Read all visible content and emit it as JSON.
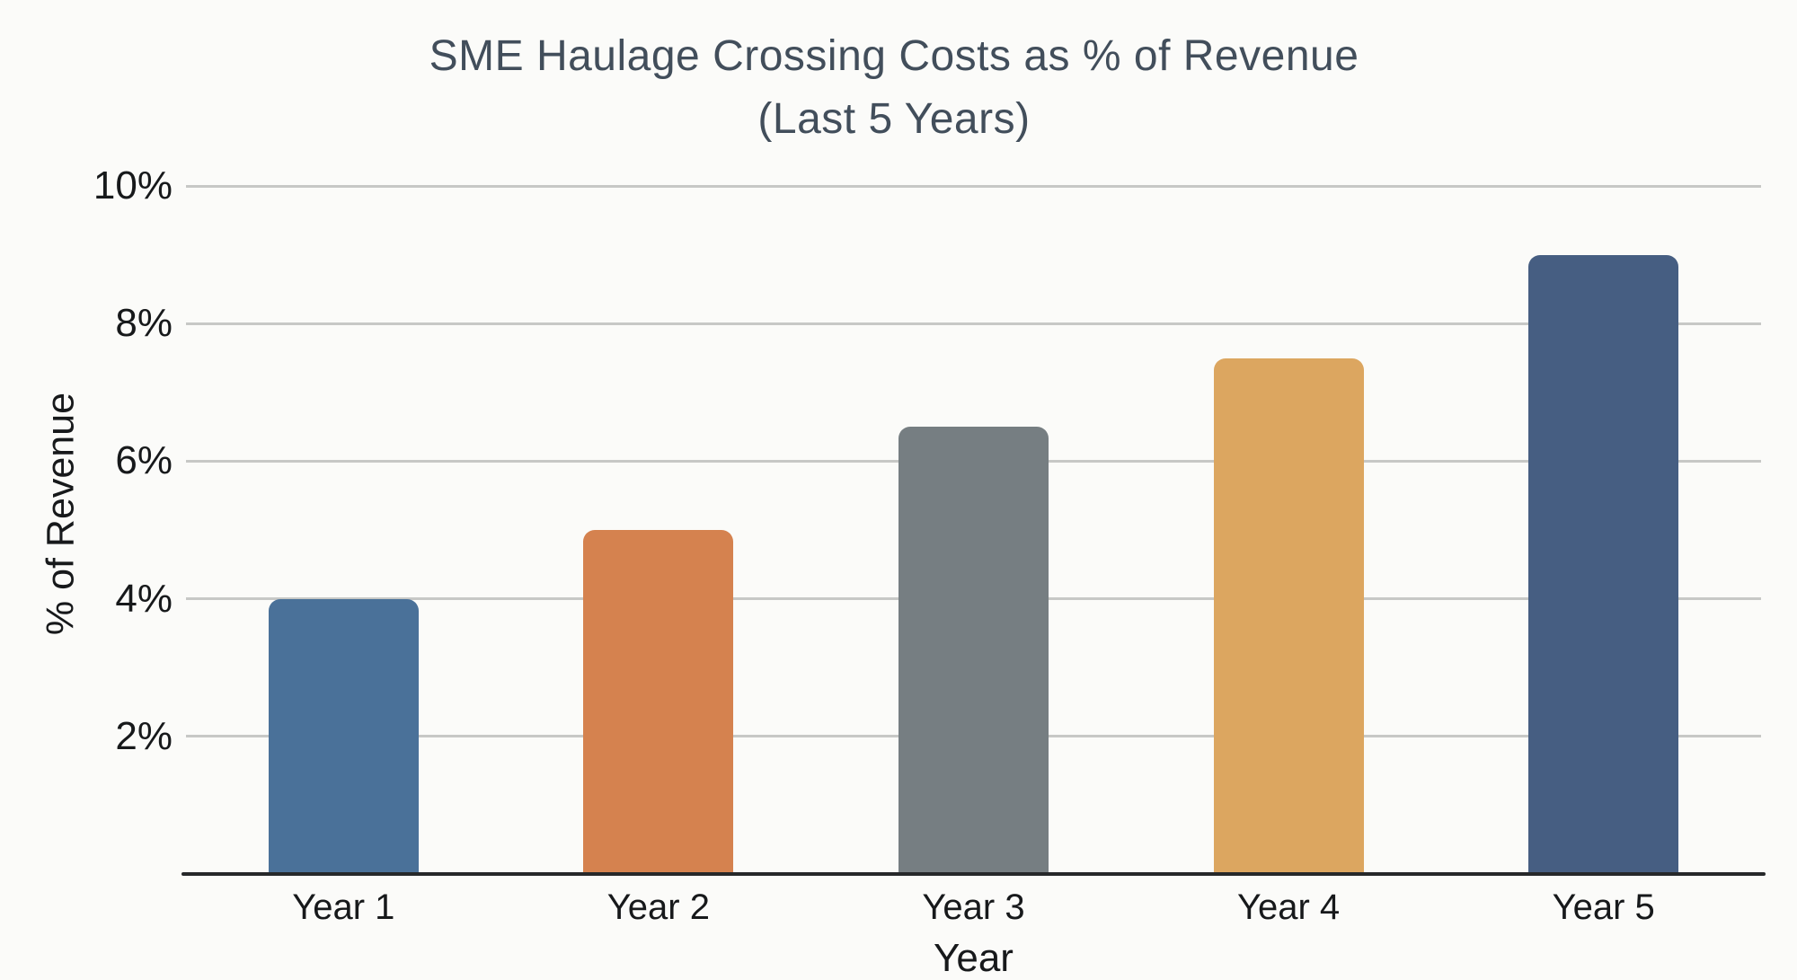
{
  "title": {
    "line1": "SME Haulage Crossing Costs as % of Revenue",
    "line2": "(Last 5 Years)"
  },
  "chart_data": {
    "type": "bar",
    "title": "SME Haulage Crossing Costs as % of Revenue (Last 5 Years)",
    "categories": [
      "Year 1",
      "Year 2",
      "Year 3",
      "Year 4",
      "Year 5"
    ],
    "values": [
      4.0,
      5.0,
      6.5,
      7.5,
      9.0
    ],
    "xlabel": "Year",
    "ylabel": "% of Revenue",
    "ylim": [
      0,
      10
    ],
    "yticks": [
      {
        "value": 2,
        "label": "2%"
      },
      {
        "value": 4,
        "label": "4%"
      },
      {
        "value": 6,
        "label": "6%"
      },
      {
        "value": 8,
        "label": "8%"
      },
      {
        "value": 10,
        "label": "10%"
      }
    ],
    "grid": true,
    "legend": false,
    "bar_colors": [
      "#4A7199",
      "#D5824F",
      "#767E82",
      "#DCA660",
      "#465E82"
    ]
  },
  "colors": {
    "background": "#FBFBF9",
    "title_text": "#424E5B",
    "axis_text": "#17191B",
    "gridline": "#C7C8C6",
    "baseline": "#26282A"
  }
}
